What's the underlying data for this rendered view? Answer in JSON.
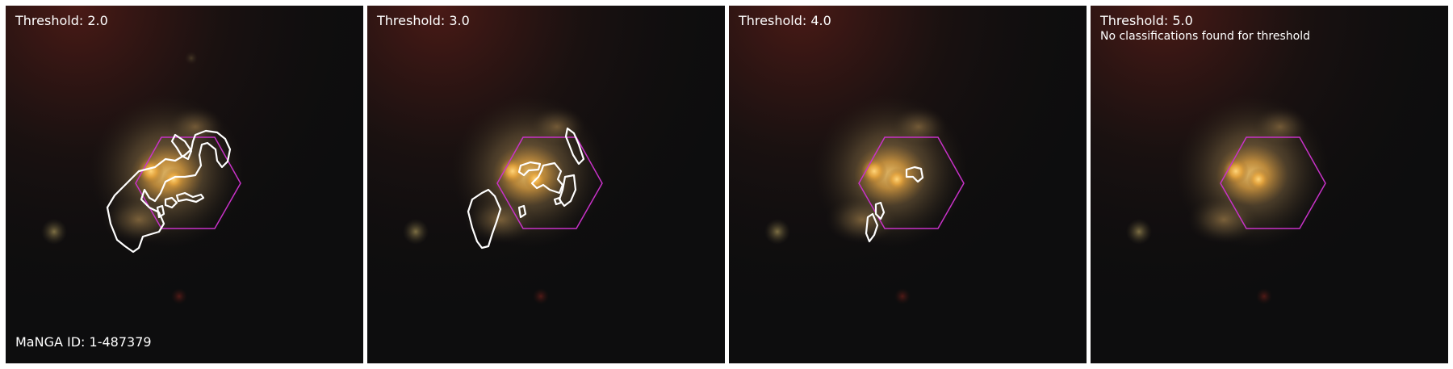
{
  "figure": {
    "manga_id": "MaNGA ID: 1-487379",
    "colors": {
      "sky": "#0d0d0e",
      "galaxy_core": "#f2b348",
      "galaxy_halo": "#9c7a4a",
      "hexagon": "#c832c8",
      "contour": "#ffffff",
      "label": "#ffffff"
    },
    "panels": [
      {
        "title": "Threshold: 2.0",
        "note": ""
      },
      {
        "title": "Threshold: 3.0",
        "note": ""
      },
      {
        "title": "Threshold: 4.0",
        "note": ""
      },
      {
        "title": "Threshold: 5.0",
        "note": "No classifications found for threshold"
      }
    ]
  }
}
